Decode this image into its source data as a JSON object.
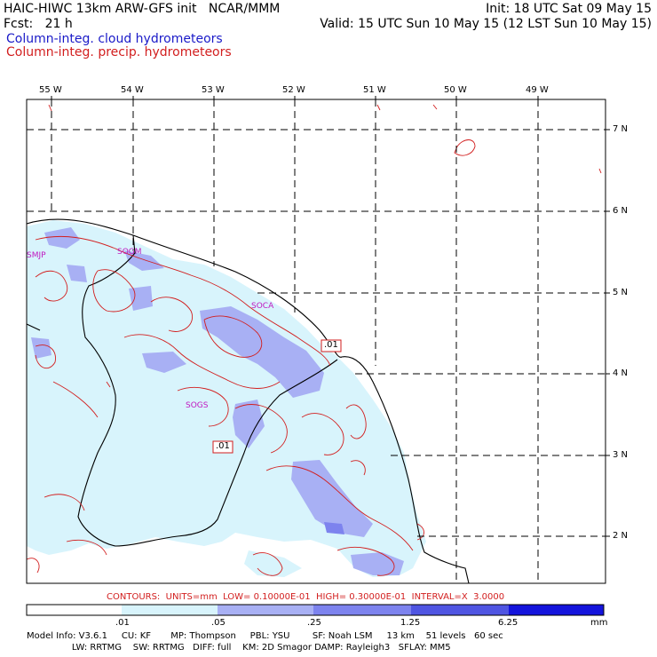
{
  "header": {
    "line1_left": "HAIC-HIWC 13km ARW-GFS init   NCAR/MMM",
    "line1_right": "Init: 18 UTC Sat 09 May 15",
    "line2_left": "Fcst:   21 h",
    "line2_right": "Valid: 15 UTC Sun 10 May 15 (12 LST Sun 10 May 15)",
    "legend_cloud": "Column-integ. cloud hydrometeors",
    "legend_precip": "Column-integ. precip. hydrometeors"
  },
  "colors": {
    "cloud_legend": "#1a1ac8",
    "precip": "#d21e1e",
    "site_label": "#c018c0",
    "fill_levels": [
      "#ffffff",
      "#d8f4fc",
      "#a8b0f4",
      "#7d83ee",
      "#4f55e2",
      "#1414dc"
    ]
  },
  "map": {
    "lon_labels": [
      "55 W",
      "54 W",
      "53 W",
      "52 W",
      "51 W",
      "50 W",
      "49 W"
    ],
    "lat_labels": [
      "7 N",
      "6 N",
      "5 N",
      "4 N",
      "3 N",
      "2 N"
    ],
    "sites": [
      "SMJP",
      "SOCA",
      "SOGS"
    ],
    "site_partial": "SOGM",
    "contour_labels": [
      ".01",
      ".01"
    ]
  },
  "footer": {
    "contours_line": "CONTOURS:  UNITS=mm  LOW= 0.10000E-01  HIGH= 0.30000E-01  INTERVAL=X  3.0000",
    "colorbar_labels": [
      ".01",
      ".05",
      ".25",
      "1.25",
      "6.25"
    ],
    "colorbar_units": "mm",
    "model_info_1": "Model Info: V3.6.1     CU: KF       MP: Thompson     PBL: YSU        SF: Noah LSM     13 km    51 levels   60 sec",
    "model_info_2": "                LW: RRTMG    SW: RRTMG   DIFF: full    KM: 2D Smagor DAMP: Rayleigh3   SFLAY: MM5"
  }
}
